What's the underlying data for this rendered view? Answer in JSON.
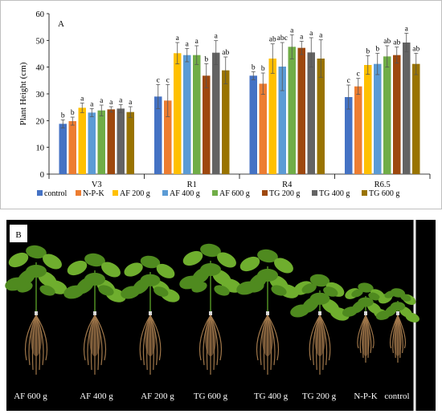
{
  "panel_a_label": "A",
  "panel_b_label": "B",
  "chart_data": {
    "type": "bar",
    "ylabel": "Plant Height (cm)",
    "xlabel": "",
    "ylim": [
      0,
      60
    ],
    "yticks": [
      0,
      10,
      20,
      30,
      40,
      50,
      60
    ],
    "grid": false,
    "legend_position": "bottom",
    "categories": [
      "V3",
      "R1",
      "R4",
      "R6.5"
    ],
    "series": [
      {
        "name": "control",
        "color": "#4472C4",
        "values": [
          18.8,
          29.0,
          36.8,
          28.8
        ],
        "errors": [
          1.5,
          4.5,
          1.5,
          4.5
        ],
        "letters": [
          "b",
          "c",
          "b",
          "c"
        ]
      },
      {
        "name": "N-P-K",
        "color": "#ED7D31",
        "values": [
          19.8,
          27.5,
          33.8,
          32.8
        ],
        "errors": [
          1.5,
          6.0,
          4.0,
          3.0
        ],
        "letters": [
          "b",
          "c",
          "b",
          "c"
        ]
      },
      {
        "name": "AF 200 g",
        "color": "#FFC000",
        "values": [
          24.8,
          45.2,
          43.2,
          40.8
        ],
        "errors": [
          1.8,
          4.0,
          5.5,
          3.5
        ],
        "letters": [
          "a",
          "a",
          "ab",
          "b"
        ]
      },
      {
        "name": "AF 400 g",
        "color": "#5B9BD5",
        "values": [
          23.0,
          44.5,
          40.2,
          41.2
        ],
        "errors": [
          1.5,
          2.5,
          9.0,
          4.0
        ],
        "letters": [
          "a",
          "a",
          "abc",
          "b"
        ]
      },
      {
        "name": "AF 600 g",
        "color": "#70AD47",
        "values": [
          23.8,
          44.5,
          47.6,
          44.0
        ],
        "errors": [
          2.0,
          3.5,
          4.5,
          4.0
        ],
        "letters": [
          "a",
          "a",
          "a",
          "ab"
        ]
      },
      {
        "name": "TG 200 g",
        "color": "#9E480E",
        "values": [
          24.2,
          36.8,
          47.2,
          44.5
        ],
        "errors": [
          1.0,
          4.5,
          2.5,
          3.0
        ],
        "letters": [
          "a",
          "b",
          "a",
          "ab"
        ]
      },
      {
        "name": "TG 400 g",
        "color": "#636363",
        "values": [
          24.5,
          45.4,
          45.5,
          49.2
        ],
        "errors": [
          1.5,
          4.5,
          5.5,
          3.5
        ],
        "letters": [
          "a",
          "a",
          "a",
          "a"
        ]
      },
      {
        "name": "TG 600 g",
        "color": "#997300",
        "values": [
          23.2,
          38.8,
          43.2,
          41.2
        ],
        "errors": [
          2.0,
          5.0,
          7.0,
          4.0
        ],
        "letters": [
          "a",
          "ab",
          "a",
          "ab"
        ]
      }
    ]
  },
  "plant_labels": [
    "AF 600 g",
    "AF 400 g",
    "AF 200 g",
    "TG 600 g",
    "TG 400 g",
    "TG 200 g",
    "N-P-K",
    "control"
  ],
  "photo_colors": {
    "background": "#000000",
    "leaf": "#4f8a1f",
    "leaf_light": "#6fae2e",
    "stem": "#3c6b1a",
    "root": "#a0774a",
    "label_bg": "#ffffff"
  }
}
